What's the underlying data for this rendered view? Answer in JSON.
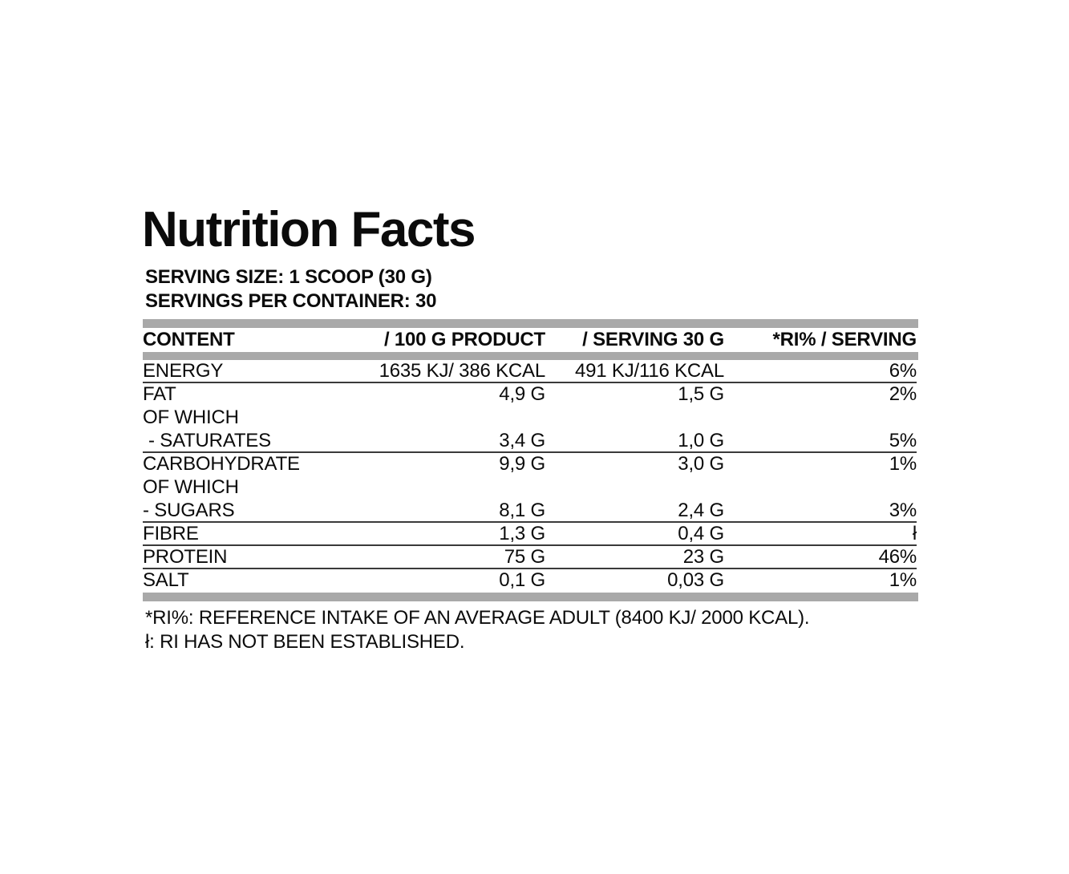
{
  "title": "Nutrition Facts",
  "serving_size": "SERVING SIZE: 1 SCOOP (30 G)",
  "servings_per_container": "SERVINGS PER CONTAINER: 30",
  "table": {
    "headers": {
      "content": "CONTENT",
      "per_100g": "/ 100 G PRODUCT",
      "per_serving": "/ SERVING 30 G",
      "ri_percent": "*RI% / SERVING"
    },
    "rows": [
      {
        "label": "ENERGY",
        "per_100g": "1635 KJ/ 386 KCAL",
        "per_serving": "491 KJ/116 KCAL",
        "ri_percent": "6%",
        "divider_after": true,
        "indent": false
      },
      {
        "label": "FAT",
        "per_100g": "4,9 G",
        "per_serving": "1,5 G",
        "ri_percent": "2%",
        "divider_after": false,
        "indent": false
      },
      {
        "label": "OF WHICH",
        "per_100g": "",
        "per_serving": "",
        "ri_percent": "",
        "divider_after": false,
        "indent": false
      },
      {
        "label": "- SATURATES",
        "per_100g": "3,4 G",
        "per_serving": "1,0 G",
        "ri_percent": "5%",
        "divider_after": true,
        "indent": true
      },
      {
        "label": "CARBOHYDRATE",
        "per_100g": "9,9 G",
        "per_serving": "3,0 G",
        "ri_percent": "1%",
        "divider_after": false,
        "indent": false
      },
      {
        "label": "OF WHICH",
        "per_100g": "",
        "per_serving": "",
        "ri_percent": "",
        "divider_after": false,
        "indent": false
      },
      {
        "label": "- SUGARS",
        "per_100g": "8,1 G",
        "per_serving": "2,4 G",
        "ri_percent": "3%",
        "divider_after": true,
        "indent": false
      },
      {
        "label": "FIBRE",
        "per_100g": "1,3 G",
        "per_serving": "0,4 G",
        "ri_percent": "ł",
        "divider_after": true,
        "indent": false
      },
      {
        "label": "PROTEIN",
        "per_100g": "75 G",
        "per_serving": "23 G",
        "ri_percent": "46%",
        "divider_after": true,
        "indent": false
      },
      {
        "label": "SALT",
        "per_100g": "0,1 G",
        "per_serving": "0,03 G",
        "ri_percent": "1%",
        "divider_after": false,
        "indent": false
      }
    ]
  },
  "footnotes": {
    "ri_definition": "*RI%: REFERENCE INTAKE OF AN AVERAGE ADULT (8400 KJ/ 2000 KCAL).",
    "not_established": "ł: RI HAS NOT BEEN ESTABLISHED."
  },
  "colors": {
    "bar_gray": "#a9a9a9",
    "divider": "#3a3a3a",
    "text": "#0b0b0b",
    "background": "#ffffff"
  }
}
